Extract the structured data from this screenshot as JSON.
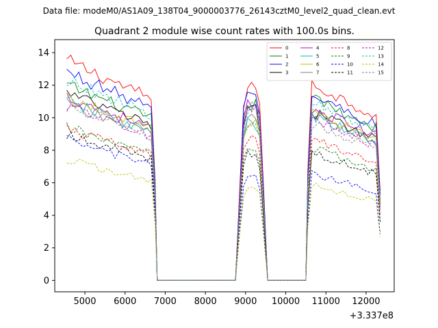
{
  "chart_data": {
    "type": "line",
    "suptitle": "Data file: modeM0/AS1A09_138T04_9000003776_26143cztM0_level2_quad_clean.evt",
    "title": "Quadrant 2 module wise count rates with 100.0s bins.",
    "xlabel": "",
    "ylabel": "",
    "x_offset_label": "+3.337e8",
    "xlim": [
      4250,
      12700
    ],
    "ylim": [
      -0.7,
      14.8
    ],
    "xticks": [
      5000,
      6000,
      7000,
      8000,
      9000,
      10000,
      11000,
      12000
    ],
    "yticks": [
      0,
      2,
      4,
      6,
      8,
      10,
      12,
      14
    ],
    "legend_position": "top-right",
    "segments": [
      {
        "start": 4550,
        "end": 6750
      },
      {
        "start": 8750,
        "end": 9550
      },
      {
        "start": 10550,
        "end": 12350
      }
    ],
    "series": [
      {
        "name": "0",
        "color": "#ff0000",
        "style": "solid",
        "levels": [
          13.5,
          12.0,
          12.2
        ]
      },
      {
        "name": "1",
        "color": "#008000",
        "style": "solid",
        "levels": [
          12.0,
          10.8,
          11.3
        ]
      },
      {
        "name": "2",
        "color": "#0000ff",
        "style": "solid",
        "levels": [
          12.8,
          11.5,
          11.5
        ]
      },
      {
        "name": "3",
        "color": "#000000",
        "style": "solid",
        "levels": [
          11.5,
          10.4,
          10.5
        ]
      },
      {
        "name": "4",
        "color": "#bf00bf",
        "style": "solid",
        "levels": [
          11.3,
          10.8,
          10.7
        ]
      },
      {
        "name": "5",
        "color": "#00bfbf",
        "style": "solid",
        "levels": [
          11.0,
          9.6,
          10.2
        ]
      },
      {
        "name": "6",
        "color": "#bfbf00",
        "style": "solid",
        "levels": [
          11.2,
          9.8,
          10.5
        ]
      },
      {
        "name": "7",
        "color": "#808080",
        "style": "solid",
        "levels": [
          10.9,
          10.2,
          10.3
        ]
      },
      {
        "name": "8",
        "color": "#ff0000",
        "style": "dashed",
        "levels": [
          9.3,
          8.6,
          8.8
        ]
      },
      {
        "name": "9",
        "color": "#008000",
        "style": "dashed",
        "levels": [
          9.4,
          8.1,
          8.2
        ]
      },
      {
        "name": "10",
        "color": "#0000ff",
        "style": "dashed",
        "levels": [
          8.6,
          6.3,
          6.6
        ]
      },
      {
        "name": "11",
        "color": "#000000",
        "style": "dashed",
        "levels": [
          9.0,
          7.8,
          7.9
        ]
      },
      {
        "name": "12",
        "color": "#bf00bf",
        "style": "dashed",
        "levels": [
          10.8,
          10.3,
          10.0
        ]
      },
      {
        "name": "13",
        "color": "#00bfbf",
        "style": "dashed",
        "levels": [
          12.3,
          10.6,
          11.0
        ]
      },
      {
        "name": "14",
        "color": "#bfbf00",
        "style": "dashed",
        "levels": [
          7.4,
          5.8,
          5.9
        ]
      },
      {
        "name": "15",
        "color": "#808080",
        "style": "dashed",
        "levels": [
          10.6,
          9.5,
          9.7
        ]
      }
    ]
  }
}
